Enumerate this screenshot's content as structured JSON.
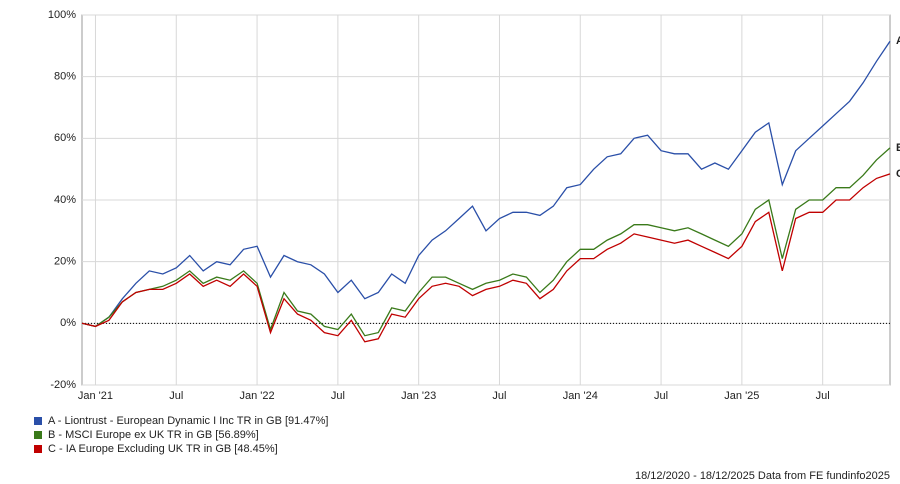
{
  "chart_data": {
    "type": "line",
    "x": [
      "2020-12",
      "2021-01",
      "2021-02",
      "2021-03",
      "2021-04",
      "2021-05",
      "2021-06",
      "2021-07",
      "2021-08",
      "2021-09",
      "2021-10",
      "2021-11",
      "2021-12",
      "2022-01",
      "2022-02",
      "2022-03",
      "2022-04",
      "2022-05",
      "2022-06",
      "2022-07",
      "2022-08",
      "2022-09",
      "2022-10",
      "2022-11",
      "2022-12",
      "2023-01",
      "2023-02",
      "2023-03",
      "2023-04",
      "2023-05",
      "2023-06",
      "2023-07",
      "2023-08",
      "2023-09",
      "2023-10",
      "2023-11",
      "2023-12",
      "2024-01",
      "2024-02",
      "2024-03",
      "2024-04",
      "2024-05",
      "2024-06",
      "2024-07",
      "2024-08",
      "2024-09",
      "2024-10",
      "2024-11",
      "2024-12",
      "2025-01",
      "2025-02",
      "2025-03",
      "2025-04",
      "2025-05",
      "2025-06",
      "2025-07",
      "2025-08",
      "2025-09",
      "2025-10",
      "2025-11",
      "2025-12"
    ],
    "series": [
      {
        "name": "A - Liontrust - European Dynamic I Inc TR in GB [91.47%]",
        "label": "A",
        "color": "#2a4fa8",
        "values": [
          0,
          -1,
          2,
          8,
          13,
          17,
          16,
          18,
          22,
          17,
          20,
          19,
          24,
          25,
          15,
          22,
          20,
          19,
          16,
          10,
          14,
          8,
          10,
          16,
          13,
          22,
          27,
          30,
          34,
          38,
          30,
          34,
          36,
          36,
          35,
          38,
          44,
          45,
          50,
          54,
          55,
          60,
          61,
          56,
          55,
          55,
          50,
          52,
          50,
          56,
          62,
          65,
          45,
          56,
          60,
          64,
          68,
          72,
          78,
          85,
          91.47
        ]
      },
      {
        "name": "B - MSCI Europe ex UK TR in GB [56.89%]",
        "label": "B",
        "color": "#3a7a1a",
        "values": [
          0,
          -1,
          2,
          7,
          10,
          11,
          12,
          14,
          17,
          13,
          15,
          14,
          17,
          13,
          -2,
          10,
          4,
          3,
          -1,
          -2,
          3,
          -4,
          -3,
          5,
          4,
          10,
          15,
          15,
          13,
          11,
          13,
          14,
          16,
          15,
          10,
          14,
          20,
          24,
          24,
          27,
          29,
          32,
          32,
          31,
          30,
          31,
          29,
          27,
          25,
          29,
          37,
          40,
          21,
          37,
          40,
          40,
          44,
          44,
          48,
          53,
          56.89
        ]
      },
      {
        "name": "C - IA Europe Excluding UK TR in GB [48.45%]",
        "label": "C",
        "color": "#c00000",
        "values": [
          0,
          -1,
          1,
          7,
          10,
          11,
          11,
          13,
          16,
          12,
          14,
          12,
          16,
          12,
          -3,
          8,
          3,
          1,
          -3,
          -4,
          1,
          -6,
          -5,
          3,
          2,
          8,
          12,
          13,
          12,
          9,
          11,
          12,
          14,
          13,
          8,
          11,
          17,
          21,
          21,
          24,
          26,
          29,
          28,
          27,
          26,
          27,
          25,
          23,
          21,
          25,
          33,
          36,
          17,
          34,
          36,
          36,
          40,
          40,
          44,
          47,
          48.45
        ]
      }
    ],
    "xlim": [
      "2020-12",
      "2025-12"
    ],
    "xticks": [
      {
        "value": "2021-01",
        "label": "Jan '21"
      },
      {
        "value": "2021-07",
        "label": "Jul"
      },
      {
        "value": "2022-01",
        "label": "Jan '22"
      },
      {
        "value": "2022-07",
        "label": "Jul"
      },
      {
        "value": "2023-01",
        "label": "Jan '23"
      },
      {
        "value": "2023-07",
        "label": "Jul"
      },
      {
        "value": "2024-01",
        "label": "Jan '24"
      },
      {
        "value": "2024-07",
        "label": "Jul"
      },
      {
        "value": "2025-01",
        "label": "Jan '25"
      },
      {
        "value": "2025-07",
        "label": "Jul"
      }
    ],
    "ylim": [
      -20,
      100
    ],
    "yticks": [
      {
        "value": -20,
        "label": "-20%"
      },
      {
        "value": 0,
        "label": "0%"
      },
      {
        "value": 20,
        "label": "20%"
      },
      {
        "value": 40,
        "label": "40%"
      },
      {
        "value": 60,
        "label": "60%"
      },
      {
        "value": 80,
        "label": "80%"
      },
      {
        "value": 100,
        "label": "100%"
      }
    ],
    "grid": true,
    "zero_line": true,
    "footnote": "18/12/2020 - 18/12/2025 Data from FE fundinfo2025"
  }
}
